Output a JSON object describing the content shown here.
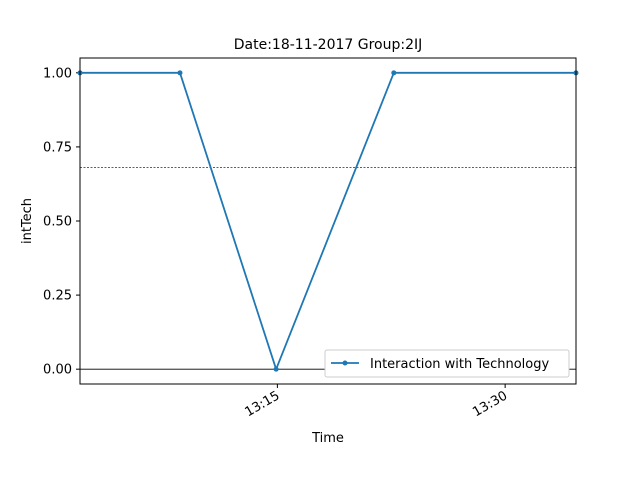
{
  "chart_data": {
    "type": "line",
    "title": "Date:18-11-2017  Group:2IJ",
    "xlabel": "Time",
    "ylabel": "intTech",
    "x_ticks": [
      "13:15",
      "13:30"
    ],
    "y_ticks": [
      "0.00",
      "0.25",
      "0.50",
      "0.75",
      "1.00"
    ],
    "xlim": [
      "13:02:00",
      "13:34:40"
    ],
    "ylim": [
      -0.05,
      1.05
    ],
    "grid": false,
    "legend_position": "lower right",
    "reference_lines": [
      {
        "y": 0.68,
        "style": "dotted",
        "color": "#1f1f8f"
      },
      {
        "y": 0.0,
        "style": "solid",
        "color": "#000000"
      }
    ],
    "series": [
      {
        "name": "Interaction with Technology",
        "color": "#1f77b4",
        "marker": "circle",
        "x": [
          "13:02:00",
          "13:08:35",
          "13:14:55",
          "13:22:40",
          "13:34:40"
        ],
        "y": [
          1.0,
          1.0,
          0.0,
          1.0,
          1.0
        ]
      }
    ]
  }
}
